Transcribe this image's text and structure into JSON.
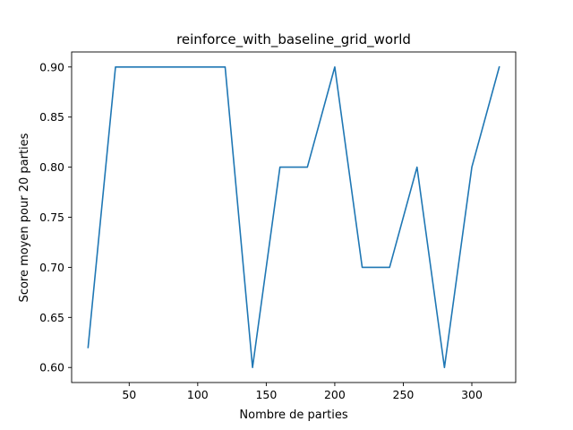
{
  "chart_data": {
    "type": "line",
    "title": "reinforce_with_baseline_grid_world",
    "xlabel": "Nombre de parties",
    "ylabel": "Score moyen pour 20 parties",
    "xlim": [
      8,
      332
    ],
    "ylim": [
      0.585,
      0.915
    ],
    "xticks": [
      50,
      100,
      150,
      200,
      250,
      300
    ],
    "xtick_labels": [
      "50",
      "100",
      "150",
      "200",
      "250",
      "300"
    ],
    "yticks": [
      0.6,
      0.65,
      0.7,
      0.75,
      0.8,
      0.85,
      0.9
    ],
    "ytick_labels": [
      "0.60",
      "0.65",
      "0.70",
      "0.75",
      "0.80",
      "0.85",
      "0.90"
    ],
    "grid": false,
    "legend": "none",
    "series": [
      {
        "color": "#1f77b4",
        "x": [
          20,
          40,
          60,
          80,
          100,
          120,
          140,
          160,
          180,
          200,
          220,
          240,
          260,
          280,
          300,
          320
        ],
        "y": [
          0.62,
          0.9,
          0.9,
          0.9,
          0.9,
          0.9,
          0.6,
          0.8,
          0.8,
          0.9,
          0.7,
          0.7,
          0.8,
          0.6,
          0.8,
          0.9
        ]
      }
    ]
  }
}
